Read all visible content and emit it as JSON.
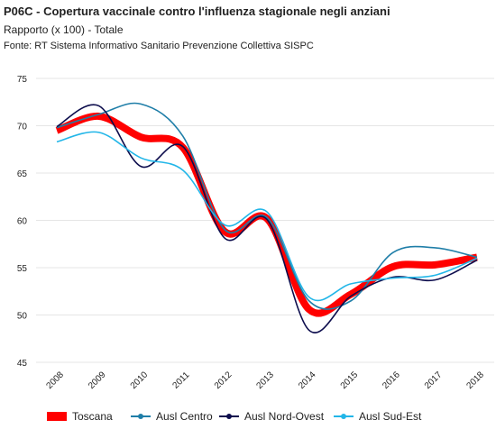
{
  "chart_data": {
    "type": "line",
    "title": "P06C - Copertura vaccinale contro l'influenza stagionale negli anziani",
    "subtitle": "Rapporto (x 100) - Totale",
    "source": "Fonte: RT Sistema Informativo Sanitario Prevenzione Collettiva SISPC",
    "categories": [
      "2008",
      "2009",
      "2010",
      "2011",
      "2012",
      "2013",
      "2014",
      "2015",
      "2016",
      "2017",
      "2018"
    ],
    "series": [
      {
        "name": "Toscana",
        "color": "#ff0000",
        "values": [
          69.5,
          71.0,
          68.8,
          67.7,
          58.8,
          60.2,
          50.6,
          52.2,
          55.1,
          55.3,
          56.1
        ]
      },
      {
        "name": "Ausl Centro",
        "color": "#1f7ea8",
        "values": [
          69.8,
          71.2,
          72.3,
          68.9,
          59.0,
          60.3,
          51.5,
          51.5,
          56.6,
          57.1,
          56.1
        ]
      },
      {
        "name": "Ausl Nord-Ovest",
        "color": "#0d0d4d",
        "values": [
          69.9,
          72.1,
          65.7,
          67.8,
          58.1,
          60.1,
          48.4,
          52.0,
          54.0,
          53.7,
          55.8
        ]
      },
      {
        "name": "Ausl Sud-Est",
        "color": "#22b6e8",
        "values": [
          68.3,
          69.3,
          66.6,
          65.3,
          59.5,
          60.9,
          51.9,
          53.3,
          53.9,
          54.2,
          56.0
        ]
      }
    ],
    "ylim": [
      45,
      75
    ],
    "yticks": [
      45,
      50,
      55,
      60,
      65,
      70,
      75
    ],
    "grid": true
  }
}
